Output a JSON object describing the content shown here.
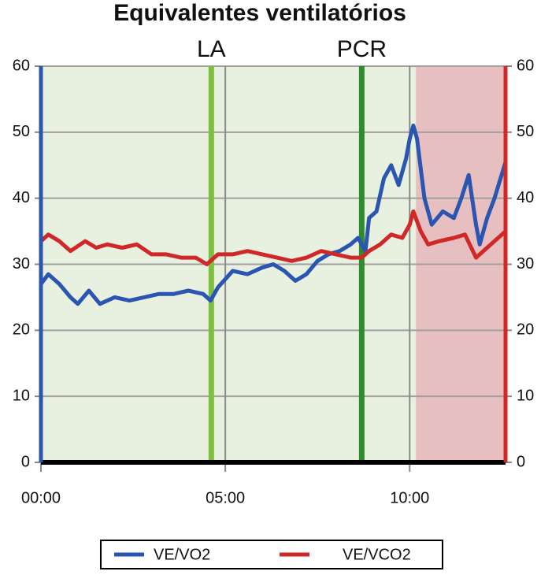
{
  "chart_data": {
    "type": "line",
    "title": "Equivalentes ventilatórios",
    "xlim": [
      0,
      12.6
    ],
    "xticks": [
      {
        "value": 0,
        "label": "00:00"
      },
      {
        "value": 5,
        "label": "05:00"
      },
      {
        "value": 10,
        "label": "10:00"
      }
    ],
    "ylim": [
      0,
      60
    ],
    "yticks": [
      0,
      10,
      20,
      30,
      40,
      50,
      60
    ],
    "grid": true,
    "background": "#e8f0e0",
    "shaded_region": {
      "x": [
        10.17,
        12.6
      ],
      "color": "#e8bfc0"
    },
    "markers": [
      {
        "label": "LA",
        "x": 4.62,
        "color": "#7fbf3f"
      },
      {
        "label": "PCR",
        "x": 8.7,
        "color": "#2e8b2e"
      }
    ],
    "legend": "bottom",
    "series": [
      {
        "name": "VE/VO2",
        "color": "#2a55b0",
        "x": [
          0,
          0.2,
          0.5,
          0.8,
          1,
          1.3,
          1.6,
          2,
          2.4,
          2.8,
          3.2,
          3.6,
          4,
          4.4,
          4.6,
          4.8,
          5.2,
          5.6,
          6,
          6.3,
          6.6,
          6.9,
          7.2,
          7.5,
          7.8,
          8.1,
          8.4,
          8.6,
          8.8,
          8.9,
          9.1,
          9.3,
          9.5,
          9.7,
          9.9,
          10,
          10.1,
          10.2,
          10.4,
          10.6,
          10.9,
          11.2,
          11.4,
          11.6,
          11.8,
          11.9,
          12.1,
          12.3,
          12.6
        ],
        "values": [
          27,
          28.5,
          27,
          25,
          24,
          26,
          24,
          25,
          24.5,
          25,
          25.5,
          25.5,
          26,
          25.5,
          24.5,
          26.5,
          29,
          28.5,
          29.5,
          30,
          29,
          27.5,
          28.5,
          30.5,
          31.5,
          32,
          33,
          34,
          32,
          37,
          38,
          43,
          45,
          42,
          46,
          49,
          51,
          49,
          40,
          36,
          38,
          37,
          40,
          43.5,
          36,
          33,
          37,
          40,
          45.5
        ]
      },
      {
        "name": "VE/VCO2",
        "color": "#d02828",
        "x": [
          0,
          0.2,
          0.5,
          0.8,
          1.2,
          1.5,
          1.8,
          2.2,
          2.6,
          3,
          3.4,
          3.8,
          4.2,
          4.5,
          4.8,
          5.2,
          5.6,
          6,
          6.4,
          6.8,
          7.2,
          7.6,
          8,
          8.4,
          8.7,
          8.9,
          9.2,
          9.5,
          9.8,
          10,
          10.1,
          10.3,
          10.5,
          10.8,
          11.2,
          11.5,
          11.8,
          12.1,
          12.4,
          12.6
        ],
        "values": [
          33.5,
          34.5,
          33.5,
          32,
          33.5,
          32.5,
          33,
          32.5,
          33,
          31.5,
          31.5,
          31,
          31,
          30,
          31.5,
          31.5,
          32,
          31.5,
          31,
          30.5,
          31,
          32,
          31.5,
          31,
          31,
          32,
          33,
          34.5,
          34,
          36,
          38,
          35,
          33,
          33.5,
          34,
          34.5,
          31,
          32.5,
          34,
          35
        ]
      }
    ]
  }
}
